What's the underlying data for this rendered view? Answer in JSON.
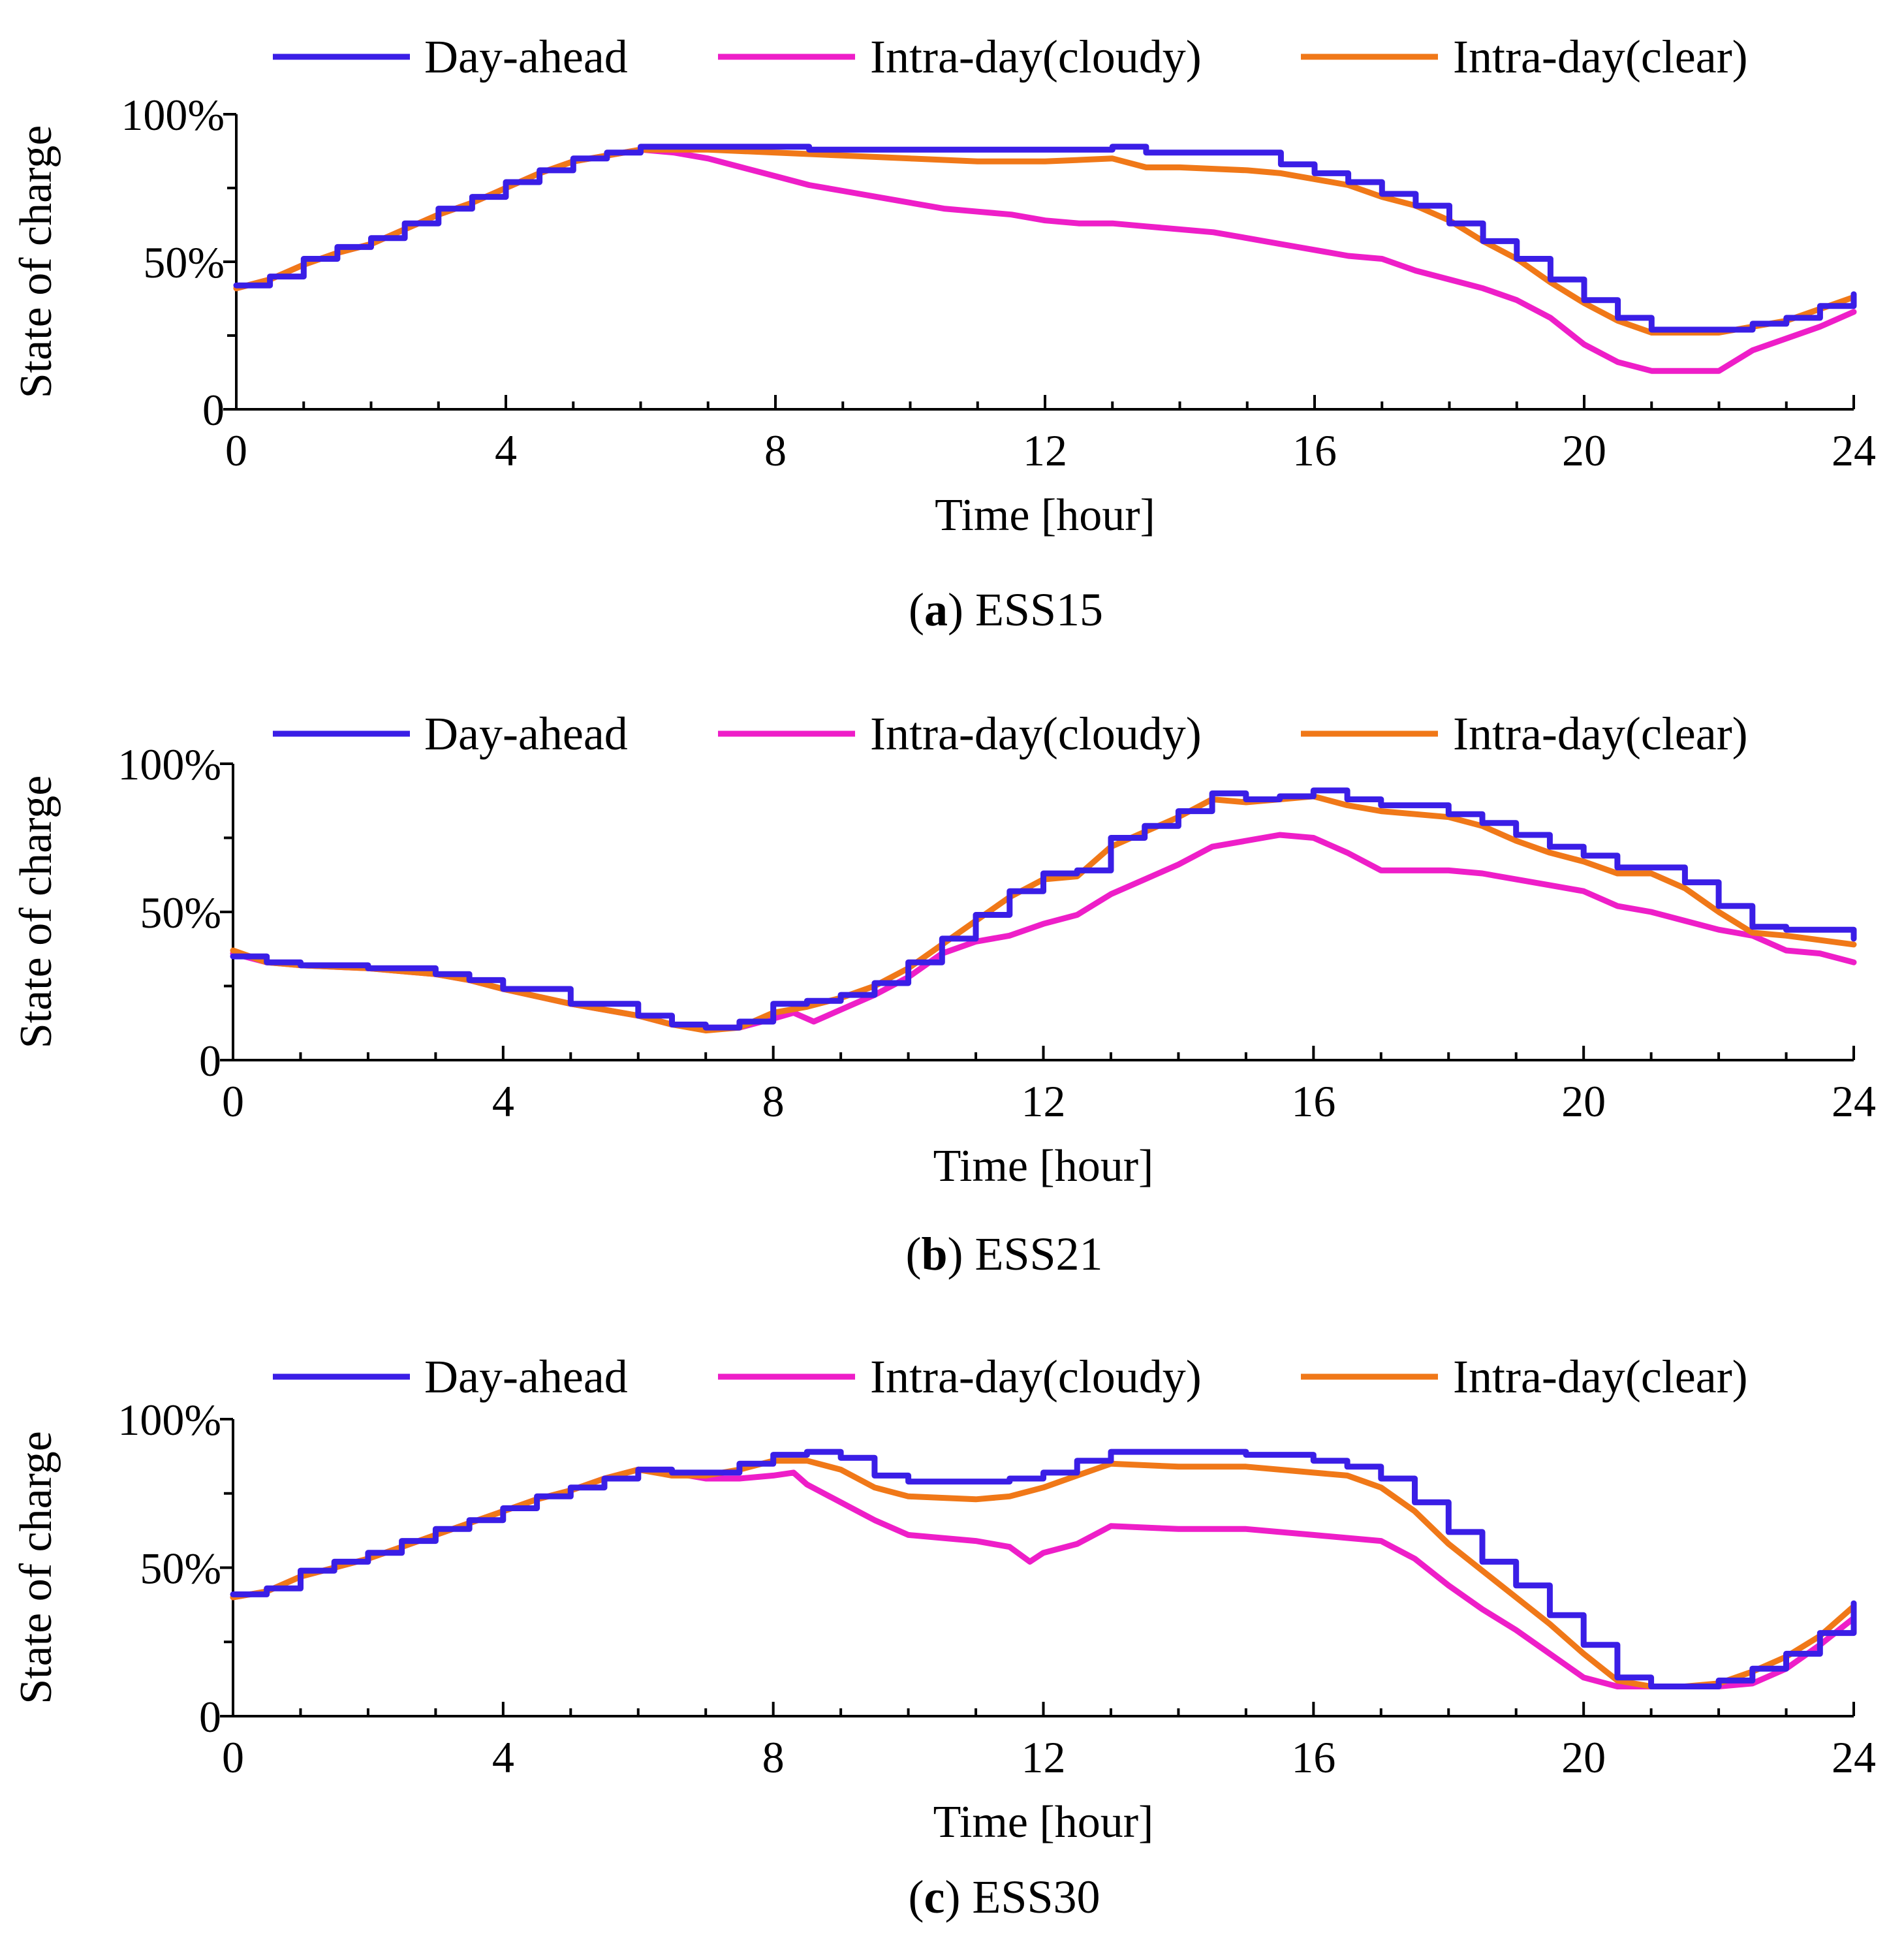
{
  "figure": {
    "legend_labels": [
      "Day-ahead",
      "Intra-day(cloudy)",
      "Intra-day(clear)"
    ]
  },
  "chart_data": [
    {
      "type": "line",
      "caption": {
        "letter": "a",
        "name": "ESS15"
      },
      "xlabel": "Time [hour]",
      "ylabel": "State of charge",
      "xlim": [
        0,
        24
      ],
      "ylim": [
        0,
        100
      ],
      "xticks": [
        0,
        4,
        8,
        12,
        16,
        20,
        24
      ],
      "xtick_labels": [
        "0",
        "4",
        "8",
        "12",
        "16",
        "20",
        "24"
      ],
      "yticks": [
        0,
        50,
        100
      ],
      "ytick_labels": [
        "0",
        "50%",
        "100%"
      ],
      "minor_yticks": [
        25,
        75
      ],
      "legend_position": "top",
      "grid": false,
      "series": [
        {
          "name": "Day-ahead",
          "color": "#3a1ee6",
          "stepped": true,
          "x": [
            0,
            0.5,
            1,
            1.5,
            2,
            2.5,
            3,
            3.5,
            4,
            4.5,
            5,
            5.5,
            6,
            7,
            8,
            8.5,
            10,
            12,
            13,
            13.5,
            14,
            15,
            15.5,
            16,
            16.5,
            17,
            17.5,
            18,
            18.5,
            19,
            19.5,
            20,
            20.5,
            21,
            22,
            22.5,
            23,
            23.5,
            24
          ],
          "values": [
            42,
            45,
            51,
            55,
            58,
            63,
            68,
            72,
            77,
            81,
            85,
            87,
            89,
            89,
            89,
            88,
            88,
            88,
            89,
            87,
            87,
            87,
            83,
            80,
            77,
            73,
            69,
            63,
            57,
            51,
            44,
            37,
            31,
            27,
            27,
            29,
            31,
            35,
            39
          ]
        },
        {
          "name": "Intra-day(cloudy)",
          "color": "#ee1ec8",
          "stepped": false,
          "x": [
            0,
            0.5,
            1,
            1.5,
            2,
            2.5,
            3,
            3.5,
            4,
            4.5,
            5,
            5.5,
            6,
            6.5,
            7,
            7.5,
            8,
            8.5,
            9,
            9.5,
            10,
            10.5,
            11,
            11.5,
            12,
            12.5,
            13,
            13.5,
            14,
            14.5,
            15,
            15.5,
            16,
            16.5,
            17,
            17.5,
            18,
            18.5,
            19,
            19.5,
            20,
            20.5,
            21,
            21.5,
            22,
            22.5,
            23,
            23.5,
            24
          ],
          "values": [
            41,
            44,
            49,
            53,
            56,
            61,
            66,
            70,
            75,
            80,
            84,
            86,
            88,
            87,
            85,
            82,
            79,
            76,
            74,
            72,
            70,
            68,
            67,
            66,
            64,
            63,
            63,
            62,
            61,
            60,
            58,
            56,
            54,
            52,
            51,
            47,
            44,
            41,
            37,
            31,
            22,
            16,
            13,
            13,
            13,
            20,
            24,
            28,
            33
          ]
        },
        {
          "name": "Intra-day(clear)",
          "color": "#f07818",
          "stepped": false,
          "x": [
            0,
            0.5,
            1,
            1.5,
            2,
            2.5,
            3,
            3.5,
            4,
            4.5,
            5,
            5.5,
            6,
            6.5,
            7,
            8,
            9,
            10,
            11,
            12,
            13,
            13.5,
            14,
            15,
            15.5,
            16,
            16.5,
            17,
            17.5,
            18,
            18.5,
            19,
            19.5,
            20,
            20.5,
            21,
            22,
            22.5,
            23,
            23.5,
            24
          ],
          "values": [
            41,
            44,
            49,
            53,
            56,
            61,
            66,
            70,
            75,
            80,
            84,
            86,
            88,
            88,
            88,
            87,
            86,
            85,
            84,
            84,
            85,
            82,
            82,
            81,
            80,
            78,
            76,
            72,
            69,
            64,
            57,
            51,
            43,
            36,
            30,
            26,
            26,
            28,
            30,
            34,
            38
          ]
        }
      ]
    },
    {
      "type": "line",
      "caption": {
        "letter": "b",
        "name": "ESS21"
      },
      "xlabel": "Time [hour]",
      "ylabel": "State of charge",
      "xlim": [
        0,
        24
      ],
      "ylim": [
        0,
        100
      ],
      "xticks": [
        0,
        4,
        8,
        12,
        16,
        20,
        24
      ],
      "xtick_labels": [
        "0",
        "4",
        "8",
        "12",
        "16",
        "20",
        "24"
      ],
      "yticks": [
        0,
        50,
        100
      ],
      "ytick_labels": [
        "0",
        "50%",
        "100%"
      ],
      "minor_yticks": [
        25,
        75
      ],
      "legend_position": "top",
      "grid": false,
      "series": [
        {
          "name": "Day-ahead",
          "color": "#3a1ee6",
          "stepped": true,
          "x": [
            0,
            0.5,
            1,
            2,
            3,
            3.5,
            4,
            5,
            6,
            6.5,
            7,
            7.5,
            8,
            8.5,
            9,
            9.5,
            10,
            10.5,
            11,
            11.5,
            12,
            12.5,
            13,
            13.5,
            14,
            14.5,
            15,
            15.5,
            16,
            16.5,
            17,
            18,
            18.5,
            19,
            19.5,
            20,
            20.5,
            21,
            21.5,
            22,
            22.5,
            23,
            24
          ],
          "values": [
            35,
            33,
            32,
            31,
            29,
            27,
            24,
            19,
            15,
            12,
            11,
            13,
            19,
            20,
            22,
            26,
            33,
            41,
            49,
            57,
            63,
            64,
            75,
            79,
            84,
            90,
            88,
            89,
            91,
            88,
            86,
            83,
            80,
            76,
            72,
            69,
            65,
            65,
            60,
            52,
            45,
            44,
            41
          ]
        },
        {
          "name": "Intra-day(cloudy)",
          "color": "#ee1ec8",
          "stepped": false,
          "x": [
            0,
            0.5,
            1,
            2,
            3,
            3.5,
            4,
            5,
            6,
            6.5,
            7,
            7.5,
            8,
            8.3,
            8.6,
            9,
            9.5,
            10,
            10.5,
            11,
            11.5,
            12,
            12.5,
            13,
            13.5,
            14,
            14.5,
            15,
            15.5,
            16,
            16.5,
            17,
            18,
            18.5,
            19,
            19.5,
            20,
            20.5,
            21,
            21.5,
            22,
            22.5,
            23,
            23.5,
            24
          ],
          "values": [
            36,
            33,
            32,
            31,
            29,
            27,
            24,
            19,
            15,
            12,
            11,
            11,
            14,
            16,
            13,
            17,
            22,
            28,
            36,
            40,
            42,
            46,
            49,
            56,
            61,
            66,
            72,
            74,
            76,
            75,
            70,
            64,
            64,
            63,
            61,
            59,
            57,
            52,
            50,
            47,
            44,
            42,
            37,
            36,
            33
          ]
        },
        {
          "name": "Intra-day(clear)",
          "color": "#f07818",
          "stepped": false,
          "x": [
            0,
            0.5,
            1,
            2,
            3,
            3.5,
            4,
            5,
            6,
            6.5,
            7,
            7.5,
            8,
            8.5,
            9,
            9.5,
            10,
            10.5,
            11,
            11.5,
            12,
            12.5,
            13,
            13.5,
            14,
            14.5,
            15,
            15.5,
            16,
            16.5,
            17,
            18,
            18.5,
            19,
            19.5,
            20,
            20.5,
            21,
            21.5,
            22,
            22.5,
            23,
            24
          ],
          "values": [
            37,
            33,
            32,
            31,
            29,
            27,
            24,
            19,
            15,
            12,
            10,
            11,
            16,
            18,
            21,
            25,
            31,
            39,
            47,
            55,
            61,
            62,
            72,
            77,
            82,
            88,
            87,
            88,
            89,
            86,
            84,
            82,
            79,
            74,
            70,
            67,
            63,
            63,
            58,
            50,
            43,
            42,
            39
          ]
        }
      ]
    },
    {
      "type": "line",
      "caption": {
        "letter": "c",
        "name": "ESS30"
      },
      "xlabel": "Time [hour]",
      "ylabel": "State of charge",
      "xlim": [
        0,
        24
      ],
      "ylim": [
        0,
        100
      ],
      "xticks": [
        0,
        4,
        8,
        12,
        16,
        20,
        24
      ],
      "xtick_labels": [
        "0",
        "4",
        "8",
        "12",
        "16",
        "20",
        "24"
      ],
      "yticks": [
        0,
        50,
        100
      ],
      "ytick_labels": [
        "0",
        "50%",
        "100%"
      ],
      "minor_yticks": [
        25,
        75
      ],
      "legend_position": "top",
      "grid": false,
      "series": [
        {
          "name": "Day-ahead",
          "color": "#3a1ee6",
          "stepped": true,
          "x": [
            0,
            0.5,
            1,
            1.5,
            2,
            2.5,
            3,
            3.5,
            4,
            4.5,
            5,
            5.5,
            6,
            6.5,
            7,
            7.5,
            8,
            8.5,
            9,
            9.5,
            10,
            11,
            11.5,
            12,
            12.5,
            13,
            14,
            15,
            16,
            16.5,
            17,
            17.5,
            18,
            18.5,
            19,
            19.5,
            20,
            20.5,
            21,
            21.5,
            22,
            22.5,
            23,
            23.5,
            24
          ],
          "values": [
            41,
            43,
            49,
            52,
            55,
            59,
            63,
            66,
            70,
            74,
            77,
            80,
            83,
            82,
            82,
            85,
            88,
            89,
            87,
            81,
            79,
            79,
            80,
            82,
            86,
            89,
            89,
            88,
            86,
            84,
            80,
            72,
            62,
            52,
            44,
            34,
            24,
            13,
            10,
            10,
            12,
            16,
            21,
            28,
            38
          ]
        },
        {
          "name": "Intra-day(cloudy)",
          "color": "#ee1ec8",
          "stepped": false,
          "x": [
            0,
            0.5,
            1,
            1.5,
            2,
            2.5,
            3,
            3.5,
            4,
            4.5,
            5,
            5.5,
            6,
            6.5,
            7,
            7.5,
            8,
            8.3,
            8.5,
            9,
            9.5,
            10,
            11,
            11.5,
            11.8,
            12,
            12.5,
            13,
            14,
            15,
            16,
            17,
            17.5,
            18,
            18.5,
            19,
            19.5,
            20,
            20.5,
            21,
            21.5,
            22,
            22.5,
            23,
            23.5,
            24
          ],
          "values": [
            40,
            42,
            47,
            50,
            53,
            57,
            61,
            65,
            69,
            73,
            76,
            80,
            83,
            82,
            80,
            80,
            81,
            82,
            78,
            72,
            66,
            61,
            59,
            57,
            52,
            55,
            58,
            64,
            63,
            63,
            61,
            59,
            53,
            44,
            36,
            29,
            21,
            13,
            10,
            10,
            10,
            10,
            11,
            16,
            24,
            33
          ]
        },
        {
          "name": "Intra-day(clear)",
          "color": "#f07818",
          "stepped": false,
          "x": [
            0,
            0.5,
            1,
            1.5,
            2,
            2.5,
            3,
            3.5,
            4,
            4.5,
            5,
            5.5,
            6,
            6.5,
            7,
            7.5,
            8,
            8.5,
            9,
            9.5,
            10,
            11,
            11.5,
            12,
            12.5,
            13,
            14,
            15,
            16,
            16.5,
            17,
            17.5,
            18,
            18.5,
            19,
            19.5,
            20,
            20.5,
            21,
            21.5,
            22,
            22.5,
            23,
            23.5,
            24
          ],
          "values": [
            40,
            42,
            47,
            50,
            53,
            57,
            61,
            65,
            69,
            73,
            76,
            80,
            83,
            81,
            81,
            83,
            86,
            86,
            83,
            77,
            74,
            73,
            74,
            77,
            81,
            85,
            84,
            84,
            82,
            81,
            77,
            69,
            58,
            49,
            40,
            31,
            21,
            12,
            10,
            10,
            11,
            15,
            20,
            27,
            37
          ]
        }
      ]
    }
  ]
}
